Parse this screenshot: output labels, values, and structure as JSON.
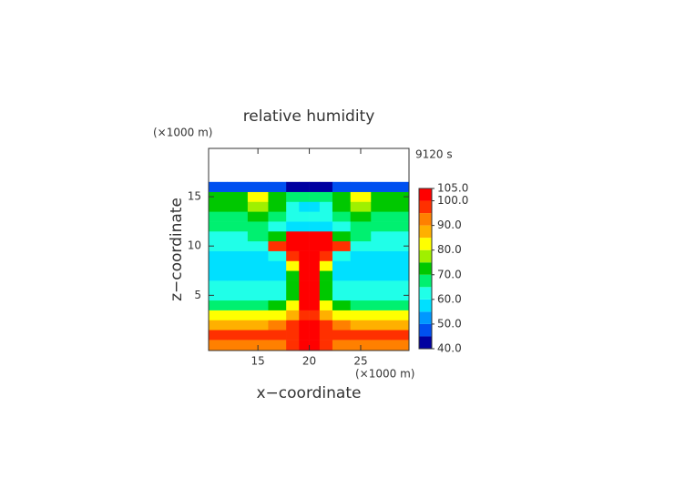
{
  "chart_data": {
    "type": "contour",
    "title": "relative humidity",
    "x_unit": "(×1000 m)",
    "y_unit": "(×1000 m)",
    "time_label": "9120 s",
    "x_label": "x−coordinate",
    "y_label": "z−coordinate",
    "xlim": [
      10.2,
      29.7
    ],
    "xticks": [
      15,
      20,
      25
    ],
    "ylim": [
      -0.6,
      19.9
    ],
    "yticks": [
      5,
      10,
      15
    ],
    "x": [
      11,
      13,
      15,
      17,
      18.5,
      19.5,
      20.5,
      21.5,
      23,
      25,
      27,
      29
    ],
    "y": [
      0,
      1,
      2,
      3,
      4,
      5,
      6,
      7,
      8,
      9,
      10,
      11,
      12,
      13,
      14,
      15,
      16
    ],
    "values": [
      [
        90,
        90,
        90,
        92,
        95,
        102,
        102,
        95,
        92,
        90,
        90,
        90
      ],
      [
        95,
        95,
        95,
        96,
        98,
        103,
        103,
        98,
        96,
        95,
        95,
        95
      ],
      [
        88,
        88,
        88,
        90,
        95,
        102,
        102,
        95,
        90,
        88,
        88,
        88
      ],
      [
        80,
        80,
        80,
        82,
        85,
        97,
        97,
        85,
        82,
        80,
        80,
        80
      ],
      [
        68,
        68,
        68,
        70,
        80,
        100,
        100,
        80,
        70,
        68,
        68,
        68
      ],
      [
        64,
        64,
        64,
        64,
        72,
        101,
        101,
        72,
        64,
        64,
        64,
        64
      ],
      [
        60,
        60,
        60,
        60,
        70,
        101,
        101,
        70,
        60,
        60,
        60,
        60
      ],
      [
        57,
        57,
        57,
        58,
        72,
        101,
        101,
        72,
        58,
        57,
        57,
        57
      ],
      [
        57,
        57,
        57,
        58,
        80,
        102,
        102,
        80,
        58,
        57,
        57,
        57
      ],
      [
        57,
        57,
        58,
        60,
        96,
        102,
        102,
        96,
        60,
        58,
        57,
        57
      ],
      [
        60,
        60,
        63,
        95,
        102,
        102,
        102,
        102,
        95,
        63,
        60,
        60
      ],
      [
        63,
        63,
        66,
        70,
        101,
        102,
        102,
        101,
        70,
        66,
        63,
        63
      ],
      [
        66,
        66,
        66,
        62,
        58,
        55,
        55,
        58,
        62,
        66,
        66,
        66
      ],
      [
        68,
        68,
        70,
        66,
        62,
        60,
        60,
        62,
        66,
        70,
        68,
        68
      ],
      [
        72,
        74,
        76,
        70,
        62,
        58,
        58,
        62,
        70,
        76,
        74,
        72
      ],
      [
        70,
        72,
        80,
        72,
        68,
        65,
        65,
        68,
        72,
        80,
        72,
        70
      ],
      [
        48,
        47,
        45,
        45,
        44,
        43,
        43,
        44,
        45,
        45,
        47,
        48
      ]
    ],
    "levels": [
      40,
      45,
      50,
      55,
      60,
      65,
      70,
      75,
      80,
      85,
      90,
      95,
      100,
      105
    ],
    "colors": [
      "#0000a0",
      "#0050f0",
      "#0098ff",
      "#00e0ff",
      "#20ffe8",
      "#00f070",
      "#00c800",
      "#a0f000",
      "#ffff00",
      "#ffb000",
      "#ff8000",
      "#ff3000",
      "#ff0000"
    ],
    "over_color": "#f08a8a",
    "colorbar_ticks": [
      {
        "value": 40,
        "label": "40.0"
      },
      {
        "value": 50,
        "label": "50.0"
      },
      {
        "value": 60,
        "label": "60.0"
      },
      {
        "value": 70,
        "label": "70.0"
      },
      {
        "value": 80,
        "label": "80.0"
      },
      {
        "value": 90,
        "label": "90.0"
      },
      {
        "value": 100,
        "label": "100.0"
      },
      {
        "value": 105,
        "label": "105.0"
      }
    ]
  }
}
